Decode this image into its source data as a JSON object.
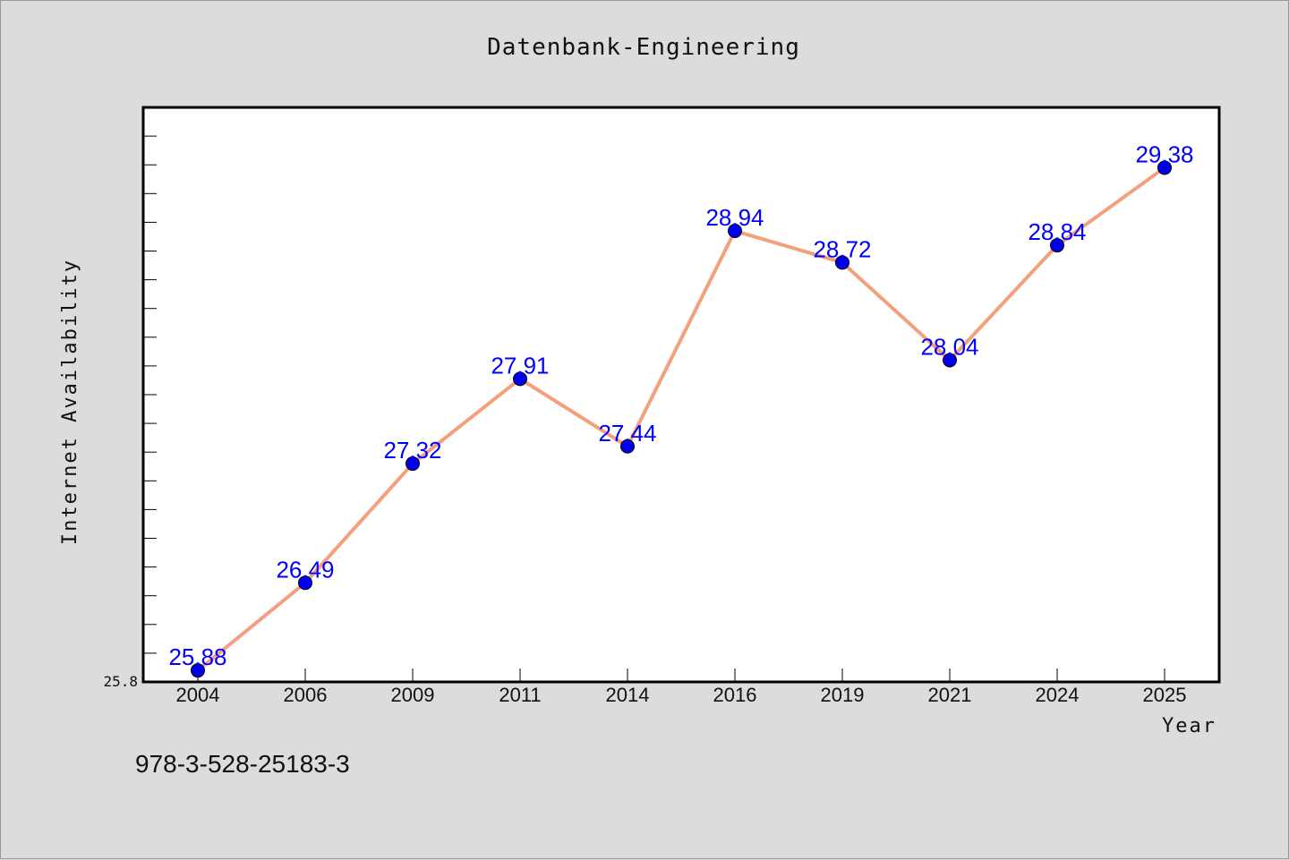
{
  "chart_data": {
    "type": "line",
    "title": "Datenbank-Engineering",
    "xlabel": "Year",
    "ylabel": "Internet Availability",
    "categories": [
      "2004",
      "2006",
      "2009",
      "2011",
      "2014",
      "2016",
      "2019",
      "2021",
      "2024",
      "2025"
    ],
    "series": [
      {
        "values": [
          25.88,
          26.49,
          27.32,
          27.91,
          27.44,
          28.94,
          28.72,
          28.04,
          28.84,
          29.38
        ],
        "labels": [
          "25.88",
          "26.49",
          "27.32",
          "27.91",
          "27.44",
          "28.94",
          "28.72",
          "28.04",
          "28.84",
          "29.38"
        ],
        "line_color": "#f4a07c",
        "marker_color": "#0000ee"
      }
    ],
    "ylim": [
      25.8,
      29.8
    ],
    "ytick_label": "25.8",
    "grid": false,
    "label_color": "#0000ff"
  },
  "footer": {
    "isbn": "978-3-528-25183-3"
  }
}
